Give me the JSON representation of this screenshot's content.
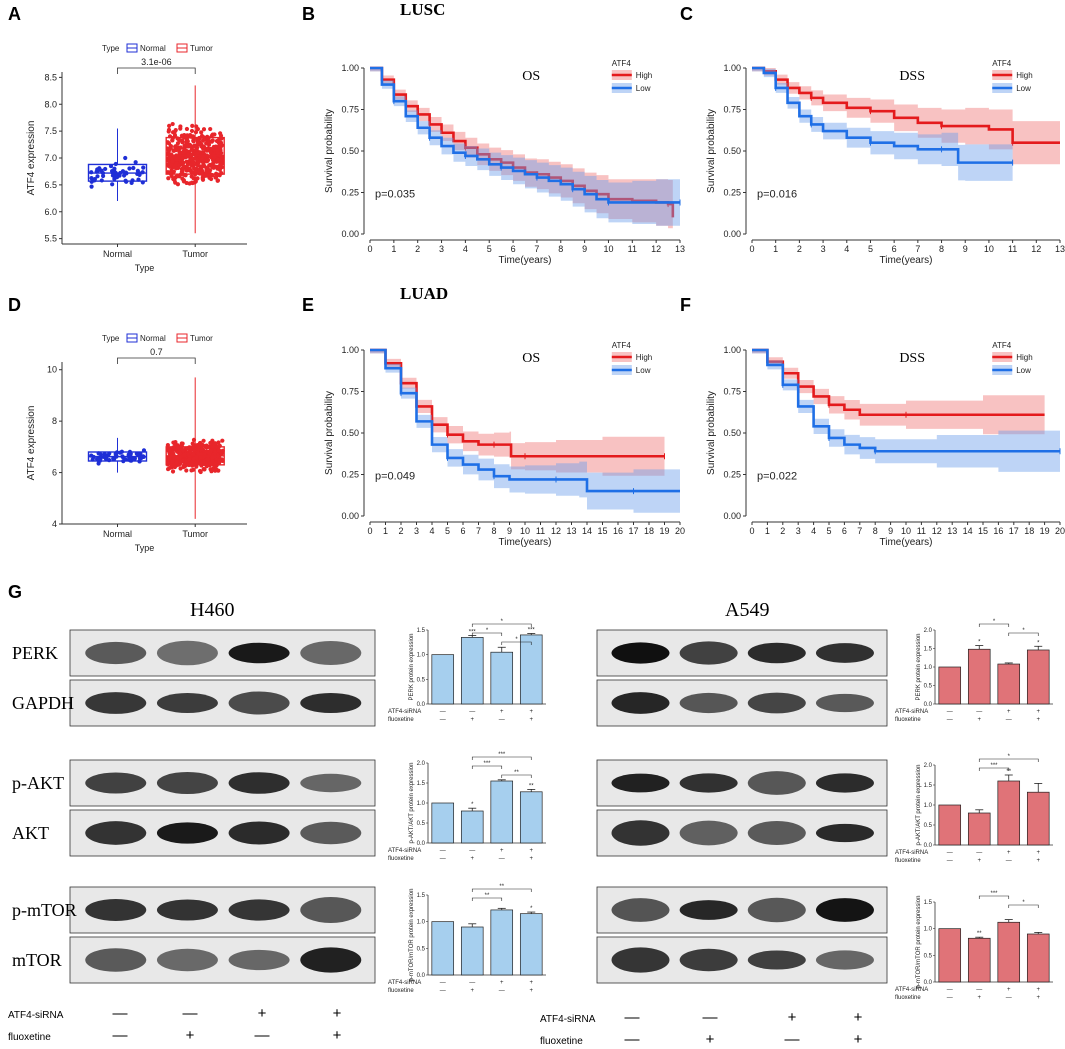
{
  "panel_labels": [
    "A",
    "B",
    "C",
    "D",
    "E",
    "F",
    "G"
  ],
  "cohorts": {
    "B": "LUSC",
    "E": "LUAD"
  },
  "colors": {
    "normal": "#1f2fd6",
    "tumor": "#e8262b",
    "high": "#e41a1c",
    "low": "#1f6fe6",
    "bar_h460": "#a6cfee",
    "bar_a549": "#e07378",
    "blot_bg": "#e8e8e8"
  },
  "chart_data": [
    {
      "id": "A",
      "type": "box",
      "title": "",
      "xlabel": "Type",
      "ylabel": "ATF4 expression",
      "legend_title": "Type",
      "legend": [
        "Normal",
        "Tumor"
      ],
      "categories": [
        "Normal",
        "Tumor"
      ],
      "ylim": [
        5.4,
        8.6
      ],
      "yticks": [
        "5.5",
        "6.0",
        "6.5",
        "7.0",
        "7.5",
        "8.0",
        "8.5"
      ],
      "ytick_values": [
        5.5,
        6.0,
        6.5,
        7.0,
        7.5,
        8.0,
        8.5
      ],
      "boxes": [
        {
          "q1": 6.57,
          "median": 6.72,
          "q3": 6.88,
          "min": 6.2,
          "max": 7.55
        },
        {
          "q1": 6.7,
          "median": 7.05,
          "q3": 7.38,
          "min": 5.6,
          "max": 8.35
        }
      ],
      "pvalue": "3.1e-06"
    },
    {
      "id": "B",
      "type": "km",
      "title": "OS",
      "xlabel": "Time(years)",
      "ylabel": "Survival probability",
      "legend_title": "ATF4",
      "legend": [
        "High",
        "Low"
      ],
      "pvalue": "p=0.035",
      "xlim": [
        0,
        13
      ],
      "xticks": [
        "0",
        "1",
        "2",
        "3",
        "4",
        "5",
        "6",
        "7",
        "8",
        "9",
        "10",
        "11",
        "12",
        "13"
      ],
      "ylim": [
        0,
        1
      ],
      "yticks": [
        "0.00",
        "0.25",
        "0.50",
        "0.75",
        "1.00"
      ],
      "series": [
        {
          "name": "High",
          "t": [
            0,
            0.5,
            1,
            1.5,
            2,
            2.5,
            3,
            3.5,
            4,
            4.5,
            5,
            5.5,
            6,
            6.5,
            7,
            7.5,
            8,
            8.5,
            9,
            9.5,
            10,
            11,
            12,
            12.5,
            12.7
          ],
          "s": [
            1,
            0.93,
            0.84,
            0.77,
            0.72,
            0.66,
            0.61,
            0.56,
            0.52,
            0.48,
            0.45,
            0.43,
            0.4,
            0.37,
            0.36,
            0.34,
            0.32,
            0.29,
            0.26,
            0.24,
            0.21,
            0.2,
            0.19,
            0.18,
            0.1
          ]
        },
        {
          "name": "Low",
          "t": [
            0,
            0.5,
            1,
            1.5,
            2,
            2.5,
            3,
            3.5,
            4,
            4.5,
            5,
            5.5,
            6,
            6.5,
            7,
            7.5,
            8,
            8.5,
            9,
            9.5,
            10,
            11,
            12,
            13
          ],
          "s": [
            1,
            0.9,
            0.8,
            0.71,
            0.64,
            0.58,
            0.53,
            0.49,
            0.47,
            0.45,
            0.42,
            0.4,
            0.38,
            0.36,
            0.34,
            0.32,
            0.3,
            0.27,
            0.24,
            0.21,
            0.19,
            0.19,
            0.19,
            0.19
          ]
        }
      ]
    },
    {
      "id": "C",
      "type": "km",
      "title": "DSS",
      "xlabel": "Time(years)",
      "ylabel": "Survival probability",
      "legend_title": "ATF4",
      "legend": [
        "High",
        "Low"
      ],
      "pvalue": "p=0.016",
      "xlim": [
        0,
        13
      ],
      "xticks": [
        "0",
        "1",
        "2",
        "3",
        "4",
        "5",
        "6",
        "7",
        "8",
        "9",
        "10",
        "11",
        "12",
        "13"
      ],
      "ylim": [
        0,
        1
      ],
      "yticks": [
        "0.00",
        "0.25",
        "0.50",
        "0.75",
        "1.00"
      ],
      "series": [
        {
          "name": "High",
          "t": [
            0,
            0.5,
            1,
            1.5,
            2,
            2.5,
            3,
            4,
            5,
            6,
            7,
            8,
            9,
            10,
            11,
            13
          ],
          "s": [
            1,
            0.98,
            0.93,
            0.88,
            0.85,
            0.82,
            0.79,
            0.76,
            0.74,
            0.7,
            0.67,
            0.65,
            0.65,
            0.63,
            0.55,
            0.55
          ]
        },
        {
          "name": "Low",
          "t": [
            0,
            0.5,
            1,
            1.5,
            2,
            2.5,
            3,
            4,
            5,
            6,
            7,
            8,
            8.7,
            9,
            11
          ],
          "s": [
            1,
            0.97,
            0.88,
            0.79,
            0.71,
            0.66,
            0.62,
            0.58,
            0.55,
            0.53,
            0.51,
            0.51,
            0.43,
            0.43,
            0.43
          ]
        }
      ]
    },
    {
      "id": "D",
      "type": "box",
      "title": "",
      "xlabel": "Type",
      "ylabel": "ATF4 expression",
      "legend_title": "Type",
      "legend": [
        "Normal",
        "Tumor"
      ],
      "categories": [
        "Normal",
        "Tumor"
      ],
      "ylim": [
        4,
        10.3
      ],
      "yticks": [
        "4",
        "6",
        "8",
        "10"
      ],
      "ytick_values": [
        4,
        6,
        8,
        10
      ],
      "boxes": [
        {
          "q1": 6.45,
          "median": 6.62,
          "q3": 6.8,
          "min": 6.0,
          "max": 7.35
        },
        {
          "q1": 6.3,
          "median": 6.65,
          "q3": 7.0,
          "min": 4.2,
          "max": 9.7
        }
      ],
      "pvalue": "0.7"
    },
    {
      "id": "E",
      "type": "km",
      "title": "OS",
      "xlabel": "Time(years)",
      "ylabel": "Survival probability",
      "legend_title": "ATF4",
      "legend": [
        "High",
        "Low"
      ],
      "pvalue": "p=0.049",
      "xlim": [
        0,
        20
      ],
      "xticks": [
        "0",
        "1",
        "2",
        "3",
        "4",
        "5",
        "6",
        "7",
        "8",
        "9",
        "10",
        "11",
        "12",
        "13",
        "14",
        "15",
        "16",
        "17",
        "18",
        "19",
        "20"
      ],
      "ylim": [
        0,
        1
      ],
      "yticks": [
        "0.00",
        "0.25",
        "0.50",
        "0.75",
        "1.00"
      ],
      "series": [
        {
          "name": "High",
          "t": [
            0,
            1,
            2,
            3,
            4,
            5,
            6,
            7,
            8,
            9,
            9.1,
            10,
            12,
            15,
            19
          ],
          "s": [
            1,
            0.92,
            0.8,
            0.66,
            0.55,
            0.49,
            0.45,
            0.43,
            0.43,
            0.43,
            0.36,
            0.36,
            0.36,
            0.36,
            0.36
          ]
        },
        {
          "name": "Low",
          "t": [
            0,
            1,
            2,
            3,
            4,
            5,
            6,
            7,
            8,
            9,
            10,
            12,
            13.5,
            14,
            17,
            20
          ],
          "s": [
            1,
            0.89,
            0.74,
            0.57,
            0.43,
            0.35,
            0.31,
            0.28,
            0.24,
            0.22,
            0.22,
            0.22,
            0.22,
            0.15,
            0.15,
            0.15
          ]
        }
      ]
    },
    {
      "id": "F",
      "type": "km",
      "title": "DSS",
      "xlabel": "Time(years)",
      "ylabel": "Survival probability",
      "legend_title": "ATF4",
      "legend": [
        "High",
        "Low"
      ],
      "pvalue": "p=0.022",
      "xlim": [
        0,
        20
      ],
      "xticks": [
        "0",
        "1",
        "2",
        "3",
        "4",
        "5",
        "6",
        "7",
        "8",
        "9",
        "10",
        "11",
        "12",
        "13",
        "14",
        "15",
        "16",
        "17",
        "18",
        "19",
        "20"
      ],
      "ylim": [
        0,
        1
      ],
      "yticks": [
        "0.00",
        "0.25",
        "0.50",
        "0.75",
        "1.00"
      ],
      "series": [
        {
          "name": "High",
          "t": [
            0,
            1,
            2,
            3,
            4,
            5,
            6,
            7,
            10,
            15,
            19
          ],
          "s": [
            1,
            0.93,
            0.86,
            0.78,
            0.72,
            0.67,
            0.64,
            0.61,
            0.61,
            0.61,
            0.61
          ]
        },
        {
          "name": "Low",
          "t": [
            0,
            1,
            2,
            3,
            4,
            5,
            6,
            7,
            8,
            12,
            16,
            20
          ],
          "s": [
            1,
            0.91,
            0.79,
            0.66,
            0.54,
            0.47,
            0.43,
            0.41,
            0.39,
            0.39,
            0.39,
            0.39
          ]
        }
      ]
    }
  ],
  "western": {
    "conditions": {
      "siRNA_label": "ATF4-siRNA",
      "fluoxetine_label": "fluoxetine",
      "siRNA": [
        "—",
        "—",
        "+",
        "+"
      ],
      "fluoxetine": [
        "—",
        "+",
        "—",
        "+"
      ]
    },
    "cells": [
      {
        "id": "H460",
        "name": "H460",
        "blots": [
          [
            "PERK",
            "GAPDH"
          ],
          [
            "p-AKT",
            "AKT"
          ],
          [
            "p-mTOR",
            "mTOR"
          ]
        ]
      },
      {
        "id": "A549",
        "name": "A549",
        "blots": [
          [
            "",
            ""
          ],
          [
            "",
            ""
          ],
          [
            "",
            ""
          ]
        ]
      }
    ],
    "bar_charts": [
      {
        "cell": "H460",
        "ylabel": "PERK protein expression",
        "values": [
          1.0,
          1.35,
          1.05,
          1.4
        ],
        "errors": [
          0.0,
          0.04,
          0.1,
          0.03
        ],
        "ylim": [
          0,
          1.5
        ],
        "yticks": [
          "0.0",
          "0.5",
          "1.0",
          "1.5"
        ],
        "stars": [
          "",
          "***",
          "",
          "***"
        ],
        "brackets": [
          {
            "from": 1,
            "to": 3,
            "label": "*"
          },
          {
            "from": 1,
            "to": 2,
            "label": "*"
          },
          {
            "from": 2,
            "to": 3,
            "label": "*"
          }
        ]
      },
      {
        "cell": "A549",
        "ylabel": "PERK protein expression",
        "values": [
          1.0,
          1.48,
          1.08,
          1.46
        ],
        "errors": [
          0.0,
          0.1,
          0.03,
          0.1
        ],
        "ylim": [
          0,
          2.0
        ],
        "yticks": [
          "0.0",
          "0.5",
          "1.0",
          "1.5",
          "2.0"
        ],
        "stars": [
          "",
          "*",
          "",
          "*"
        ],
        "brackets": [
          {
            "from": 1,
            "to": 2,
            "label": "*"
          },
          {
            "from": 2,
            "to": 3,
            "label": "*"
          }
        ]
      },
      {
        "cell": "H460",
        "ylabel": "p-AKT/AKT protein expression",
        "values": [
          1.0,
          0.8,
          1.55,
          1.28
        ],
        "errors": [
          0.0,
          0.07,
          0.03,
          0.06
        ],
        "ylim": [
          0,
          2.0
        ],
        "yticks": [
          "0.0",
          "0.5",
          "1.0",
          "1.5",
          "2.0"
        ],
        "stars": [
          "",
          "*",
          "",
          "**"
        ],
        "brackets": [
          {
            "from": 1,
            "to": 3,
            "label": "***"
          },
          {
            "from": 1,
            "to": 2,
            "label": "***"
          },
          {
            "from": 2,
            "to": 3,
            "label": "**"
          }
        ]
      },
      {
        "cell": "A549",
        "ylabel": "p-AKT/AKT protein expression",
        "values": [
          1.0,
          0.8,
          1.6,
          1.32
        ],
        "errors": [
          0.0,
          0.08,
          0.15,
          0.22
        ],
        "ylim": [
          0,
          2.0
        ],
        "yticks": [
          "0.0",
          "0.5",
          "1.0",
          "1.5",
          "2.0"
        ],
        "stars": [
          "",
          "",
          "**",
          ""
        ],
        "brackets": [
          {
            "from": 1,
            "to": 3,
            "label": "*"
          },
          {
            "from": 1,
            "to": 2,
            "label": "***"
          }
        ]
      },
      {
        "cell": "H460",
        "ylabel": "p-mTOR/mTOR  protein expression",
        "values": [
          1.0,
          0.9,
          1.22,
          1.15
        ],
        "errors": [
          0.0,
          0.06,
          0.03,
          0.03
        ],
        "ylim": [
          0,
          1.5
        ],
        "yticks": [
          "0.0",
          "0.5",
          "1.0",
          "1.5"
        ],
        "stars": [
          "",
          "",
          "",
          "*"
        ],
        "brackets": [
          {
            "from": 1,
            "to": 3,
            "label": "**"
          },
          {
            "from": 1,
            "to": 2,
            "label": "**"
          }
        ]
      },
      {
        "cell": "A549",
        "ylabel": "p-mTOR/mTOR protein expression",
        "values": [
          1.0,
          0.82,
          1.12,
          0.9
        ],
        "errors": [
          0.0,
          0.02,
          0.05,
          0.03
        ],
        "ylim": [
          0,
          1.5
        ],
        "yticks": [
          "0.0",
          "0.5",
          "1.0",
          "1.5"
        ],
        "stars": [
          "",
          "**",
          "",
          ""
        ],
        "brackets": [
          {
            "from": 1,
            "to": 2,
            "label": "***"
          },
          {
            "from": 2,
            "to": 3,
            "label": "*"
          }
        ]
      }
    ]
  }
}
